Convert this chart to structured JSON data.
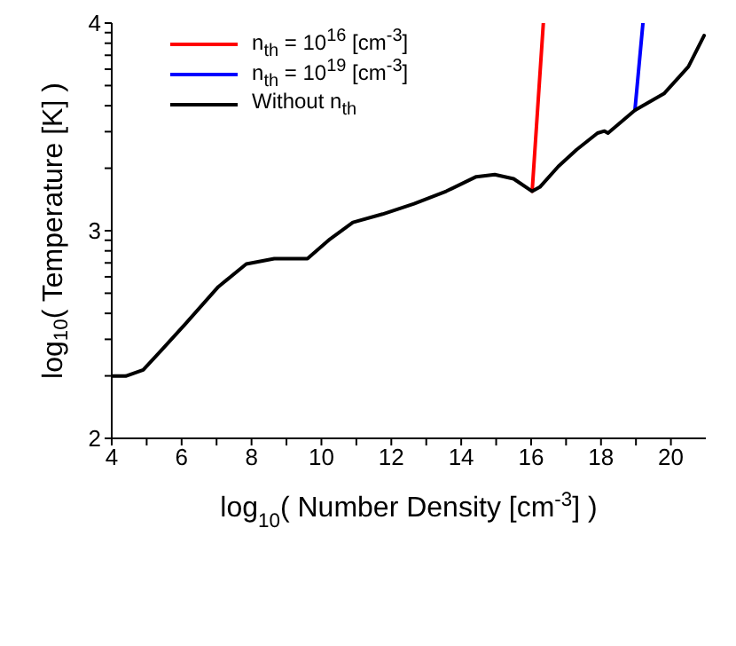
{
  "chart_data": {
    "type": "line",
    "xlabel": "log$_{10}$( Number Density [cm$^{-3}$] )",
    "ylabel": "log$_{10}$( Temperature [K] )",
    "xlim": [
      4,
      21
    ],
    "ylim": [
      2,
      4
    ],
    "xticks": [
      4,
      {
        "value": 5,
        "label": null
      },
      6,
      {
        "value": 7,
        "label": null
      },
      8,
      {
        "value": 9,
        "label": null
      },
      10,
      {
        "value": 11,
        "label": null
      },
      12,
      {
        "value": 13,
        "label": null
      },
      14,
      {
        "value": 15,
        "label": null
      },
      16,
      {
        "value": 17,
        "label": null
      },
      18,
      {
        "value": 19,
        "label": null
      },
      20
    ],
    "yticks": [
      2,
      {
        "value": 2.301,
        "label": null
      },
      {
        "value": 2.477,
        "label": null
      },
      {
        "value": 2.602,
        "label": null
      },
      {
        "value": 2.699,
        "label": null
      },
      {
        "value": 2.778,
        "label": null
      },
      {
        "value": 2.845,
        "label": null
      },
      {
        "value": 2.903,
        "label": null
      },
      {
        "value": 2.954,
        "label": null
      },
      3,
      {
        "value": 3.301,
        "label": null
      },
      {
        "value": 3.477,
        "label": null
      },
      {
        "value": 3.602,
        "label": null
      },
      {
        "value": 3.699,
        "label": null
      },
      {
        "value": 3.778,
        "label": null
      },
      {
        "value": 3.845,
        "label": null
      },
      {
        "value": 3.903,
        "label": null
      },
      {
        "value": 3.954,
        "label": null
      },
      4
    ],
    "grid": false,
    "legend": "top left",
    "marker": "none",
    "line_style": "solid",
    "series": [
      {
        "name": "n$_{th}$ = 10$^{16}$ [cm$^{-3}$]",
        "color": "#ff0000",
        "x": [
          16.03,
          16.35
        ],
        "values": [
          3.19,
          4.0
        ]
      },
      {
        "name": "n$_{th}$ = 10$^{19}$ [cm$^{-3}$]",
        "color": "#0000ff",
        "x": [
          18.97,
          19.2
        ],
        "values": [
          3.58,
          4.0
        ]
      },
      {
        "name": "Without n$_{th}$",
        "color": "#000000",
        "x": [
          4,
          4.4,
          4.9,
          5.4,
          6.1,
          7.05,
          7.85,
          8.65,
          9.6,
          10.25,
          10.9,
          11.75,
          12.65,
          13.57,
          14.43,
          14.96,
          15.5,
          16.03,
          16.25,
          16.78,
          17.3,
          17.9,
          18.1,
          18.2,
          18.97,
          19.8,
          20.5,
          20.95
        ],
        "values": [
          2.3,
          2.3,
          2.33,
          2.42,
          2.55,
          2.73,
          2.84,
          2.865,
          2.865,
          2.96,
          3.04,
          3.08,
          3.13,
          3.19,
          3.26,
          3.27,
          3.25,
          3.19,
          3.21,
          3.31,
          3.39,
          3.47,
          3.48,
          3.47,
          3.58,
          3.66,
          3.79,
          3.94
        ]
      }
    ]
  }
}
